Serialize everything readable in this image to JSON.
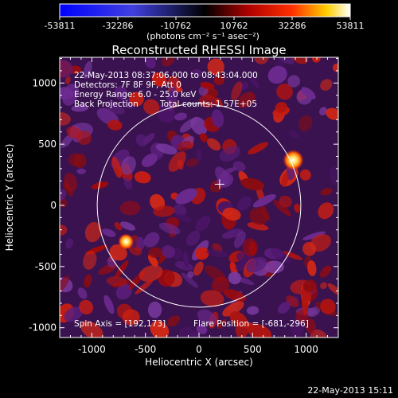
{
  "colorbar": {
    "ticks": [
      "-53811",
      "-32286",
      "-10762",
      "10762",
      "32286",
      "53811"
    ],
    "unit_label": "(photons cm⁻² s⁻¹ asec⁻²)"
  },
  "chart_data": {
    "type": "heatmap",
    "title": "Reconstructed RHESSI Image",
    "xlabel": "Heliocentric X (arcsec)",
    "ylabel": "Heliocentric Y (arcsec)",
    "xlim": [
      -1300,
      1300
    ],
    "ylim": [
      -1080,
      1210
    ],
    "xticks": [
      -1000,
      -500,
      0,
      500,
      1000
    ],
    "yticks": [
      -1000,
      -500,
      0,
      500,
      1000
    ],
    "colorbar_range": [
      -53811,
      53811
    ],
    "solar_limb": {
      "center": [
        0,
        0
      ],
      "radius_arcsec": 950
    },
    "marker_plus": [
      192,
      173
    ],
    "bright_sources": [
      {
        "x": 880,
        "y": 370
      },
      {
        "x": -681,
        "y": -296
      }
    ],
    "annotations": {
      "time_range": "22-May-2013 08:37:06.000 to 08:43:04.000",
      "detectors": "Detectors: 7F 8F 9F, Att 0",
      "energy": "Energy Range: 6.0 - 25.0 keV",
      "method": "Back Projection",
      "counts": "Total counts: 1.57E+05",
      "spin_axis": "Spin Axis = [192,173]",
      "flare_position": "Flare Position = [-681,-296]"
    },
    "timestamp": "22-May-2013 15:11"
  }
}
